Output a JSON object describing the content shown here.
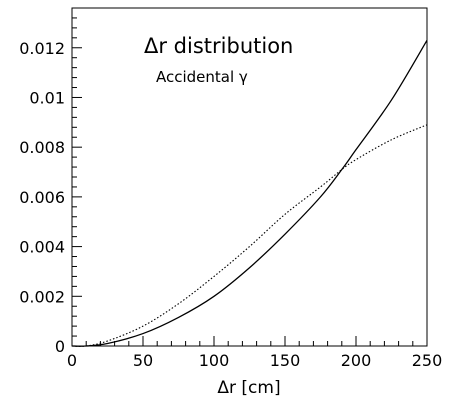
{
  "chart_data": {
    "type": "line",
    "title": "Δr distribution",
    "subtitle": "Accidental γ",
    "xlabel": "Δr [cm]",
    "ylabel": "",
    "xlim": [
      0,
      250
    ],
    "ylim": [
      0,
      0.0136
    ],
    "grid": false,
    "x_ticks": [
      "0",
      "50",
      "100",
      "150",
      "200",
      "250"
    ],
    "y_ticks": [
      "0",
      "0.002",
      "0.004",
      "0.006",
      "0.008",
      "0.01",
      "0.012"
    ],
    "series": [
      {
        "style": "solid",
        "x": [
          0,
          10,
          25,
          50,
          75,
          100,
          125,
          150,
          175,
          190,
          200,
          225,
          250
        ],
        "y": [
          0,
          0.0,
          0.0001,
          0.0005,
          0.00115,
          0.002,
          0.00315,
          0.0045,
          0.006,
          0.0071,
          0.0079,
          0.0099,
          0.0123
        ]
      },
      {
        "style": "dotted",
        "x": [
          0,
          10,
          25,
          50,
          75,
          100,
          125,
          150,
          175,
          190,
          200,
          225,
          250
        ],
        "y": [
          0,
          0.0,
          0.0002,
          0.0008,
          0.0017,
          0.0028,
          0.004,
          0.0053,
          0.0064,
          0.0071,
          0.0075,
          0.0083,
          0.0089
        ]
      }
    ]
  }
}
